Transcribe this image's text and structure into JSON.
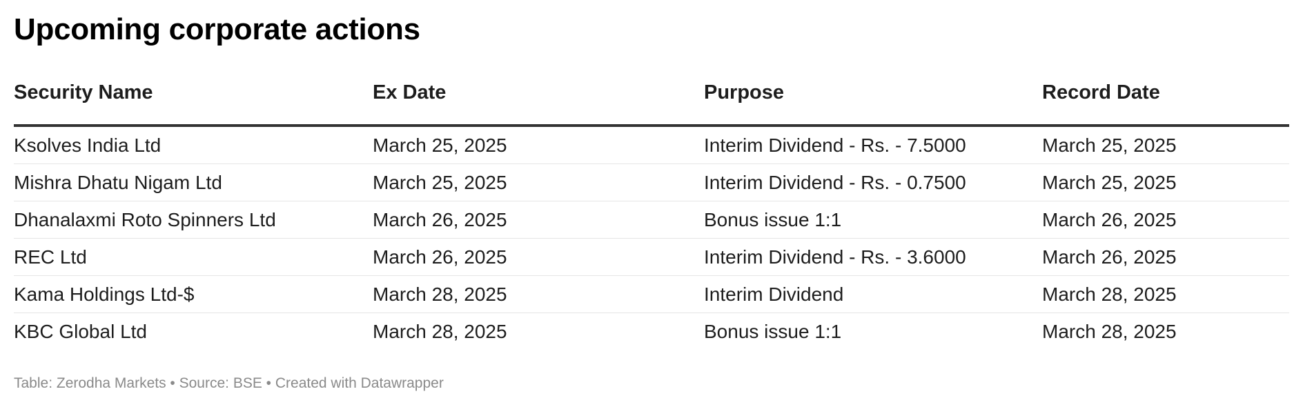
{
  "title": "Upcoming corporate actions",
  "chart_data": {
    "type": "table",
    "title": "Upcoming corporate actions",
    "columns": [
      "Security Name",
      "Ex Date",
      "Purpose",
      "Record Date"
    ],
    "rows": [
      [
        "Ksolves India Ltd",
        "March 25, 2025",
        "Interim Dividend - Rs. - 7.5000",
        "March 25, 2025"
      ],
      [
        "Mishra Dhatu Nigam Ltd",
        "March 25, 2025",
        "Interim Dividend - Rs. - 0.7500",
        "March 25, 2025"
      ],
      [
        "Dhanalaxmi Roto Spinners Ltd",
        "March 26, 2025",
        "Bonus issue 1:1",
        "March 26, 2025"
      ],
      [
        "REC Ltd",
        "March 26, 2025",
        "Interim Dividend - Rs. - 3.6000",
        "March 26, 2025"
      ],
      [
        "Kama Holdings Ltd-$",
        "March 28, 2025",
        "Interim Dividend",
        "March 28, 2025"
      ],
      [
        "KBC Global Ltd",
        "March 28, 2025",
        "Bonus issue 1:1",
        "March 28, 2025"
      ]
    ]
  },
  "footer": "Table: Zerodha Markets • Source: BSE • Created with Datawrapper"
}
